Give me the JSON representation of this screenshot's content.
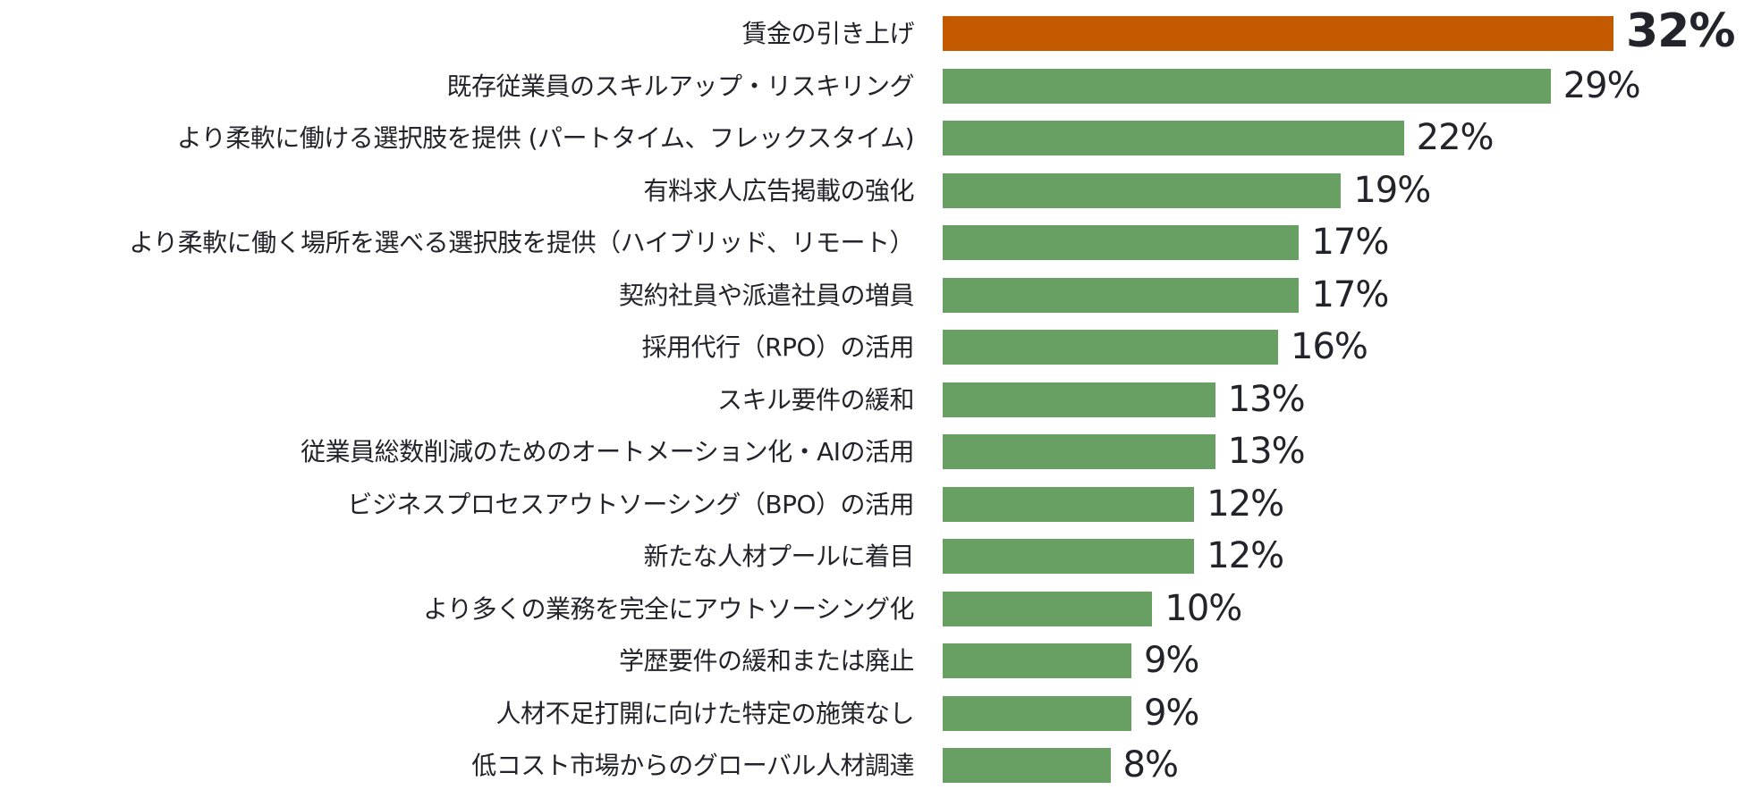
{
  "chart_data": {
    "type": "bar",
    "orientation": "horizontal",
    "categories": [
      "賃金の引き上げ",
      "既存従業員のスキルアップ・リスキリング",
      "より柔軟に働ける選択肢を提供 (パートタイム、フレックスタイム)",
      "有料求人広告掲載の強化",
      "より柔軟に働く場所を選べる選択肢を提供（ハイブリッド、リモート）",
      "契約社員や派遣社員の増員",
      "採用代行（RPO）の活用",
      "スキル要件の緩和",
      "従業員総数削減のためのオートメーション化・AIの活用",
      "ビジネスプロセスアウトソーシング（BPO）の活用",
      "新たな人材プールに着目",
      "より多くの業務を完全にアウトソーシング化",
      "学歴要件の緩和または廃止",
      "人材不足打開に向けた特定の施策なし",
      "低コスト市場からのグローバル人材調達"
    ],
    "values": [
      32,
      29,
      22,
      19,
      17,
      17,
      16,
      13,
      13,
      12,
      12,
      10,
      9,
      9,
      8
    ],
    "value_labels": [
      "32%",
      "29%",
      "22%",
      "19%",
      "17%",
      "17%",
      "16%",
      "13%",
      "13%",
      "12%",
      "12%",
      "10%",
      "9%",
      "9%",
      "8%"
    ],
    "highlight_index": 0,
    "colors": {
      "highlight": "#C45A00",
      "default": "#689F63",
      "text": "#23232B"
    },
    "xlim": [
      0,
      32
    ],
    "grid": false
  }
}
